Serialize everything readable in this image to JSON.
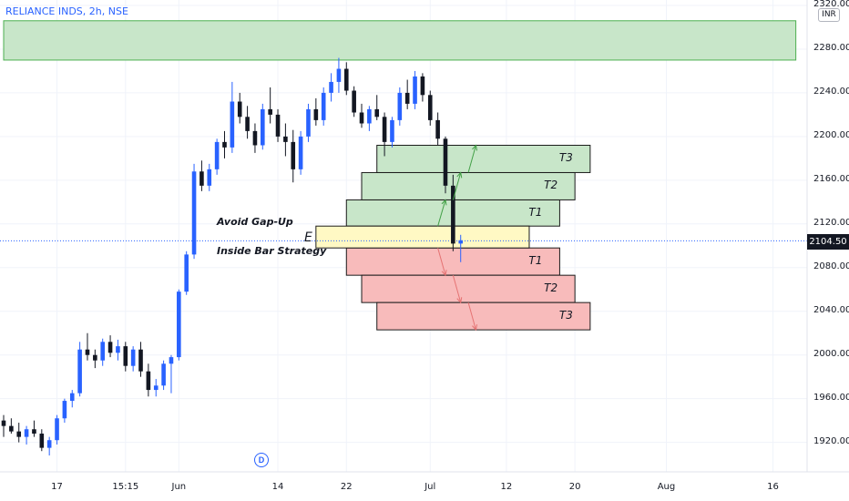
{
  "header": {
    "symbol": "RELIANCE INDS, 2h, NSE",
    "currency": "INR"
  },
  "last_price_label": "2104.50",
  "event_badge": "D",
  "annotations": {
    "title_line1": "Avoid Gap-Up",
    "title_line2": "Inside Bar Strategy",
    "entry_label": "E"
  },
  "colors": {
    "up": "#2962ff",
    "down": "#131722",
    "target_fill": "#c8e6c9",
    "target_stroke": "#1b1b1b",
    "stop_fill": "#f8bbbb",
    "entry_fill": "#fff9c4",
    "top_zone_fill": "#c8e6c9",
    "top_zone_stroke": "#4caf50",
    "arrow_up": "#43a047",
    "arrow_down": "#e57373"
  },
  "chart_data": {
    "type": "candlestick",
    "title": "",
    "y_axis": {
      "ticks": [
        1920,
        1960,
        2000,
        2040,
        2080,
        2120,
        2160,
        2200,
        2240,
        2280,
        2320
      ],
      "tick_labels": [
        "1920.00",
        "1960.00",
        "2000.00",
        "2040.00",
        "2080.00",
        "2120.00",
        "2160.00",
        "2200.00",
        "2240.00",
        "2280.00",
        "2320.00"
      ],
      "range": [
        1893,
        2325
      ]
    },
    "x_axis": {
      "ticks": [
        "17",
        "15:15",
        "Jun",
        "14",
        "22",
        "Jul",
        "12",
        "20",
        "Aug",
        "16"
      ],
      "bar_range": [
        0,
        105
      ]
    },
    "x_tick_bars": [
      7,
      16,
      23,
      36,
      45,
      56,
      66,
      75,
      87,
      101
    ],
    "last_price": 2104.5,
    "candles": [
      [
        1940,
        1945,
        1925,
        1935
      ],
      [
        1935,
        1942,
        1928,
        1930
      ],
      [
        1930,
        1938,
        1920,
        1925
      ],
      [
        1925,
        1935,
        1918,
        1932
      ],
      [
        1932,
        1940,
        1925,
        1928
      ],
      [
        1928,
        1932,
        1912,
        1915
      ],
      [
        1915,
        1925,
        1908,
        1922
      ],
      [
        1922,
        1945,
        1918,
        1942
      ],
      [
        1942,
        1960,
        1938,
        1958
      ],
      [
        1958,
        1968,
        1952,
        1965
      ],
      [
        1965,
        2012,
        1962,
        2005
      ],
      [
        2005,
        2020,
        1995,
        2000
      ],
      [
        2000,
        2005,
        1988,
        1995
      ],
      [
        1995,
        2015,
        1990,
        2012
      ],
      [
        2012,
        2018,
        1998,
        2002
      ],
      [
        2002,
        2014,
        1995,
        2008
      ],
      [
        2008,
        2012,
        1985,
        1990
      ],
      [
        1990,
        2008,
        1985,
        2005
      ],
      [
        2005,
        2012,
        1980,
        1985
      ],
      [
        1985,
        1992,
        1962,
        1968
      ],
      [
        1968,
        1978,
        1962,
        1972
      ],
      [
        1972,
        1995,
        1968,
        1992
      ],
      [
        1992,
        2000,
        1965,
        1998
      ],
      [
        1998,
        2060,
        1995,
        2058
      ],
      [
        2058,
        2095,
        2055,
        2092
      ],
      [
        2092,
        2175,
        2088,
        2168
      ],
      [
        2168,
        2178,
        2150,
        2155
      ],
      [
        2155,
        2175,
        2150,
        2170
      ],
      [
        2170,
        2198,
        2165,
        2195
      ],
      [
        2195,
        2205,
        2180,
        2190
      ],
      [
        2190,
        2250,
        2185,
        2232
      ],
      [
        2232,
        2240,
        2212,
        2218
      ],
      [
        2218,
        2228,
        2198,
        2205
      ],
      [
        2205,
        2212,
        2185,
        2192
      ],
      [
        2192,
        2230,
        2188,
        2225
      ],
      [
        2225,
        2245,
        2212,
        2220
      ],
      [
        2220,
        2225,
        2195,
        2200
      ],
      [
        2200,
        2212,
        2182,
        2195
      ],
      [
        2195,
        2206,
        2158,
        2170
      ],
      [
        2170,
        2205,
        2165,
        2200
      ],
      [
        2200,
        2230,
        2195,
        2225
      ],
      [
        2225,
        2235,
        2210,
        2215
      ],
      [
        2215,
        2245,
        2210,
        2240
      ],
      [
        2240,
        2258,
        2232,
        2250
      ],
      [
        2250,
        2272,
        2240,
        2262
      ],
      [
        2262,
        2268,
        2238,
        2242
      ],
      [
        2242,
        2246,
        2218,
        2222
      ],
      [
        2222,
        2230,
        2208,
        2212
      ],
      [
        2212,
        2228,
        2205,
        2225
      ],
      [
        2225,
        2238,
        2215,
        2218
      ],
      [
        2218,
        2222,
        2182,
        2195
      ],
      [
        2195,
        2218,
        2190,
        2215
      ],
      [
        2215,
        2245,
        2210,
        2240
      ],
      [
        2240,
        2252,
        2225,
        2230
      ],
      [
        2230,
        2260,
        2225,
        2255
      ],
      [
        2255,
        2258,
        2232,
        2238
      ],
      [
        2238,
        2242,
        2210,
        2215
      ],
      [
        2215,
        2222,
        2192,
        2198
      ],
      [
        2198,
        2200,
        2148,
        2155
      ],
      [
        2155,
        2165,
        2095,
        2102
      ],
      [
        2102,
        2110,
        2085,
        2105
      ]
    ],
    "horizontal_line": 2104.5,
    "zones": {
      "top": {
        "y": [
          2270,
          2306
        ],
        "x_bars": [
          0,
          104
        ]
      },
      "entry": {
        "label": "E",
        "y": [
          2098,
          2118
        ],
        "x_bars": [
          41,
          69
        ]
      },
      "targets": [
        {
          "label": "T1",
          "y": [
            2118,
            2142
          ],
          "x_bars": [
            45,
            73
          ]
        },
        {
          "label": "T2",
          "y": [
            2142,
            2167
          ],
          "x_bars": [
            47,
            75
          ]
        },
        {
          "label": "T3",
          "y": [
            2167,
            2192
          ],
          "x_bars": [
            49,
            77
          ]
        }
      ],
      "stops": [
        {
          "label": "T1",
          "y": [
            2073,
            2098
          ],
          "x_bars": [
            45,
            73
          ]
        },
        {
          "label": "T2",
          "y": [
            2048,
            2073
          ],
          "x_bars": [
            47,
            75
          ]
        },
        {
          "label": "T3",
          "y": [
            2023,
            2048
          ],
          "x_bars": [
            49,
            77
          ]
        }
      ]
    },
    "arrows_up": [
      [
        57,
        2118,
        58,
        2142
      ],
      [
        59,
        2142,
        60,
        2167
      ],
      [
        61,
        2167,
        62,
        2192
      ]
    ],
    "arrows_down": [
      [
        57,
        2098,
        58,
        2073
      ],
      [
        59,
        2073,
        60,
        2048
      ],
      [
        61,
        2048,
        62,
        2023
      ]
    ]
  }
}
